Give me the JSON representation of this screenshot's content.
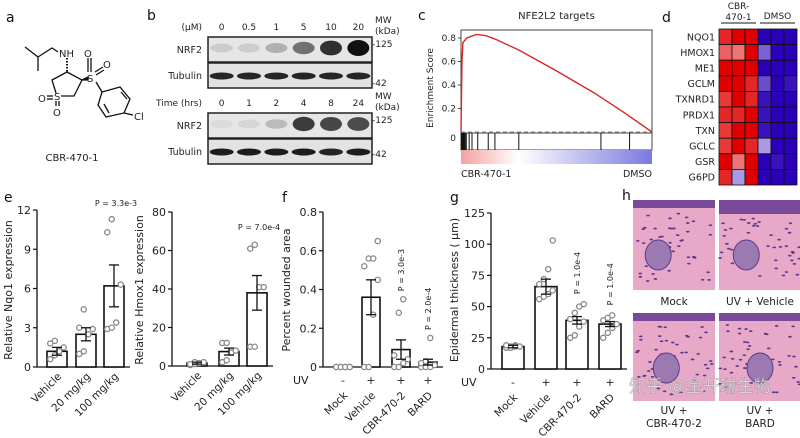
{
  "panel_labels": {
    "a": "a",
    "b": "b",
    "c": "c",
    "d": "d",
    "e": "e",
    "f": "f",
    "g": "g",
    "h": "h"
  },
  "molecule": {
    "name": "CBR-470-1",
    "atoms": {
      "nh": "NH",
      "s_sulfonyl": "S",
      "o1": "O",
      "o2": "O",
      "s_ring": "S",
      "o3": "O",
      "o4": "O",
      "cl": "Cl"
    }
  },
  "western_blot": {
    "dose": {
      "unit_label": "(µM)",
      "columns": [
        "0",
        "0.5",
        "1",
        "5",
        "10",
        "20"
      ],
      "rows": [
        "NRF2",
        "Tubulin"
      ],
      "mw_header": [
        "MW",
        "(kDa)"
      ],
      "mw_markers": [
        "-125",
        "-42"
      ],
      "nrf2_intensity": [
        0.12,
        0.12,
        0.25,
        0.55,
        0.85,
        1.0
      ],
      "tubulin_intensity": [
        0.9,
        0.9,
        0.9,
        0.9,
        0.9,
        0.9
      ]
    },
    "time": {
      "unit_label": "Time (hrs)",
      "columns": [
        "0",
        "1",
        "2",
        "4",
        "8",
        "24"
      ],
      "rows": [
        "NRF2",
        "Tubulin"
      ],
      "mw_header": [
        "MW",
        "(kDa)"
      ],
      "mw_markers": [
        "-125",
        "-42"
      ],
      "nrf2_intensity": [
        0.05,
        0.08,
        0.2,
        0.8,
        0.75,
        0.72
      ],
      "tubulin_intensity": [
        0.95,
        0.95,
        0.95,
        0.95,
        0.9,
        0.95
      ]
    }
  },
  "colors": {
    "gsea_line": "#d62728",
    "heat_high": "#e00000",
    "heat_low": "#2a00b8",
    "bar_edge": "#111111",
    "point": "#888888",
    "tissue": "#e8a9c9",
    "nuclei": "#5a3a8a"
  },
  "chart_data": [
    {
      "id": "c",
      "type": "line",
      "title": "NFE2L2 targets",
      "ylabel": "Enrichment Score",
      "yticks": [
        "0",
        "0.2",
        "0.4",
        "0.6",
        "0.8"
      ],
      "ylim": [
        0,
        0.8
      ],
      "x": [
        0,
        0.005,
        0.01,
        0.03,
        0.08,
        0.13,
        0.18,
        0.3,
        0.5,
        0.7,
        0.85,
        1.0
      ],
      "y": [
        0.0,
        0.6,
        0.76,
        0.8,
        0.83,
        0.82,
        0.79,
        0.7,
        0.52,
        0.33,
        0.17,
        0.0
      ],
      "hits": [
        0.0,
        0.004,
        0.008,
        0.012,
        0.016,
        0.02,
        0.025,
        0.04,
        0.055,
        0.085,
        0.14,
        0.175,
        0.3,
        0.73,
        0.88
      ],
      "gradient_labels": [
        "CBR-470-1",
        "DMSO"
      ]
    },
    {
      "id": "d",
      "type": "heatmap",
      "group_labels": [
        "CBR-\n470-1",
        "DMSO"
      ],
      "group_label_lines": [
        [
          "CBR-",
          "470-1"
        ],
        [
          "DMSO"
        ]
      ],
      "rows": [
        "NQO1",
        "HMOX1",
        "ME1",
        "GCLM",
        "TXNRD1",
        "PRDX1",
        "TXN",
        "GCLC",
        "GSR",
        "G6PD"
      ],
      "values": [
        [
          0.8,
          1,
          1,
          -1,
          -1,
          -1
        ],
        [
          0.5,
          0.4,
          1,
          -0.5,
          -1,
          -1
        ],
        [
          1,
          1,
          1,
          -1,
          -1,
          -1
        ],
        [
          1,
          1,
          0.8,
          -0.6,
          -1,
          -0.9
        ],
        [
          0.7,
          1,
          0.8,
          -0.9,
          -1,
          -1
        ],
        [
          0.8,
          0.8,
          1,
          -0.9,
          -1,
          -1
        ],
        [
          0.7,
          1,
          1,
          -0.9,
          -1,
          -1
        ],
        [
          0.7,
          1,
          0.8,
          -0.2,
          -1,
          -1
        ],
        [
          1,
          0.4,
          1,
          -1,
          -0.9,
          -1
        ],
        [
          0.8,
          -0.2,
          1,
          -1,
          -1,
          -1
        ]
      ]
    },
    {
      "id": "e1",
      "type": "bar",
      "ylabel": "Relative  Nqo1 expression",
      "categories": [
        "Vehicle",
        "20 mg/kg",
        "100 mg/kg"
      ],
      "ylim": [
        0,
        12
      ],
      "yticks": [
        "0",
        "3",
        "6",
        "9",
        "12"
      ],
      "means": [
        1.2,
        2.5,
        6.2
      ],
      "sem": [
        0.3,
        0.5,
        1.6
      ],
      "points": [
        [
          0.6,
          0.9,
          1.2,
          1.5,
          1.8,
          2.0
        ],
        [
          1.0,
          1.2,
          2.5,
          2.9,
          3.0,
          4.4
        ],
        [
          2.9,
          3.0,
          3.4,
          6.3,
          10.3,
          11.3
        ]
      ],
      "annotations": [
        {
          "category": 2,
          "text": "P = 3.3e-3"
        }
      ]
    },
    {
      "id": "e2",
      "type": "bar",
      "ylabel": "Relative  Hmox1  expression",
      "categories": [
        "Vehicle",
        "20 mg/kg",
        "100 mg/kg"
      ],
      "ylim": [
        0,
        80
      ],
      "yticks": [
        "0",
        "20",
        "40",
        "60",
        "80"
      ],
      "means": [
        1.5,
        7.5,
        38
      ],
      "sem": [
        0.5,
        1.8,
        9
      ],
      "points": [
        [
          0.5,
          1,
          1.5,
          2,
          1,
          2
        ],
        [
          2,
          3,
          7,
          8,
          12,
          12
        ],
        [
          10,
          10,
          41,
          41,
          61,
          63
        ]
      ],
      "annotations": [
        {
          "category": 2,
          "text": "P = 7.0e-4"
        }
      ]
    },
    {
      "id": "f",
      "type": "bar",
      "ylabel": "Percent wounded area",
      "categories": [
        "Mock",
        "Vehicle",
        "CBR-470-2",
        "BARD"
      ],
      "uv_label": "UV",
      "uv": [
        "-",
        "+",
        "+",
        "+"
      ],
      "ylim": [
        0,
        0.8
      ],
      "yticks": [
        "0",
        "0.2",
        "0.4",
        "0.6",
        "0.8"
      ],
      "means": [
        0,
        0.36,
        0.09,
        0.025
      ],
      "sem": [
        0,
        0.09,
        0.05,
        0.015
      ],
      "points": [
        [
          0,
          0,
          0,
          0,
          0,
          0,
          0,
          0
        ],
        [
          0,
          0,
          0.27,
          0.45,
          0.52,
          0.56,
          0.56,
          0.65
        ],
        [
          0,
          0,
          0.02,
          0.04,
          0.06,
          0.28,
          0.35
        ],
        [
          0,
          0,
          0,
          0.01,
          0.02,
          0.03,
          0.15
        ]
      ],
      "annotations": [
        {
          "category": 2,
          "text": "P = 3.0e-3"
        },
        {
          "category": 3,
          "text": "P = 2.0e-4"
        }
      ]
    },
    {
      "id": "g",
      "type": "bar",
      "ylabel": "Epidermal thickness (  µm)",
      "categories": [
        "Mock",
        "Vehicle",
        "CBR-470-2",
        "BARD"
      ],
      "uv_label": "UV",
      "uv": [
        "-",
        "+",
        "+",
        "+"
      ],
      "ylim": [
        0,
        125
      ],
      "yticks": [
        "0",
        "25",
        "50",
        "75",
        "100",
        "125"
      ],
      "means": [
        18,
        66,
        39,
        36
      ],
      "sem": [
        1,
        6,
        3,
        2
      ],
      "points": [
        [
          17,
          18,
          19,
          18,
          19,
          17,
          18
        ],
        [
          56,
          58,
          60,
          63,
          68,
          72,
          80,
          103
        ],
        [
          25,
          27,
          34,
          38,
          40,
          45,
          50,
          52
        ],
        [
          25,
          29,
          33,
          36,
          39,
          41,
          43
        ]
      ],
      "annotations": [
        {
          "category": 2,
          "text": "P = 1.0e-4"
        },
        {
          "category": 3,
          "text": "P = 1.0e-4"
        }
      ]
    }
  ],
  "histology": {
    "captions": [
      [
        "Mock"
      ],
      [
        "UV + Vehicle"
      ],
      [
        "UV +",
        "CBR-470-2"
      ],
      [
        "UV +",
        "BARD"
      ]
    ]
  },
  "watermark": "知乎 @金开瑞生物"
}
